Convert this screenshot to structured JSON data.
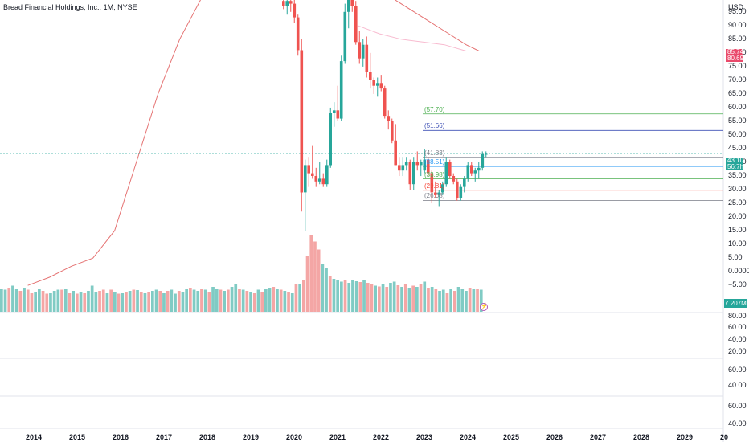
{
  "header": {
    "title": "Bread Financial Holdings, Inc., 1M, NYSE",
    "currency": "USD"
  },
  "price_axis": [
    "95.00",
    "90.00",
    "85.00",
    "80.00",
    "75.00",
    "70.00",
    "65.00",
    "60.00",
    "55.00",
    "50.00",
    "45.00",
    "40.00",
    "35.00",
    "30.00",
    "25.00",
    "20.00",
    "15.00",
    "10.00",
    "5.00",
    "0.0000",
    "−5.00"
  ],
  "pane_axes": {
    "pane1": [
      "80.00",
      "60.00",
      "40.00",
      "20.00"
    ],
    "pane2": [
      "60.00",
      "40.00"
    ],
    "pane3": [
      "60.00",
      "40.00"
    ]
  },
  "time_axis": [
    "2014",
    "2015",
    "2016",
    "2017",
    "2018",
    "2019",
    "2020",
    "2021",
    "2022",
    "2023",
    "2024",
    "2025",
    "2026",
    "2027",
    "2028",
    "2029",
    "20"
  ],
  "price_tags": {
    "current_price": "43.10",
    "current_sub": "56:7h",
    "ma_upper": "85.74",
    "ma_lower": "80.69",
    "volume": "7.207M"
  },
  "colors": {
    "up": "#26a69a",
    "down": "#ef5350",
    "up_volume": "#80cbc4",
    "down_volume": "#f4a6a5",
    "ma_line": "#e57373"
  },
  "fib_levels": [
    {
      "label": "(57.70)",
      "value": 57.7,
      "color": "#4caf50"
    },
    {
      "label": "(51.66)",
      "value": 51.66,
      "color": "#3f51b5"
    },
    {
      "label": "(41.83)",
      "value": 41.83,
      "color": "#787b86"
    },
    {
      "label": "(38.51)",
      "value": 38.51,
      "color": "#2196f3"
    },
    {
      "label": "(33.98)",
      "value": 33.98,
      "color": "#4caf50"
    },
    {
      "label": "(29.81)",
      "value": 29.81,
      "color": "#f44336"
    },
    {
      "label": "(26.08)",
      "value": 26.08,
      "color": "#787b86"
    }
  ],
  "chart_data": {
    "type": "candlestick",
    "interval": "1M",
    "y_axis_range": [
      -7,
      97
    ],
    "visible_candles_start": "2019-10",
    "candles": [
      {
        "x": "2019-10",
        "o": 99,
        "h": 103,
        "l": 96,
        "c": 97
      },
      {
        "x": "2019-11",
        "o": 97,
        "h": 100,
        "l": 94,
        "c": 99
      },
      {
        "x": "2019-12",
        "o": 99,
        "h": 102,
        "l": 95,
        "c": 98
      },
      {
        "x": "2020-01",
        "o": 98,
        "h": 100,
        "l": 91,
        "c": 93
      },
      {
        "x": "2020-02",
        "o": 93,
        "h": 94,
        "l": 79,
        "c": 81
      },
      {
        "x": "2020-03",
        "o": 81,
        "h": 85,
        "l": 22,
        "c": 29
      },
      {
        "x": "2020-04",
        "o": 29,
        "h": 41,
        "l": 15,
        "c": 39
      },
      {
        "x": "2020-05",
        "o": 39,
        "h": 42,
        "l": 31,
        "c": 36
      },
      {
        "x": "2020-06",
        "o": 36,
        "h": 46,
        "l": 34,
        "c": 35
      },
      {
        "x": "2020-07",
        "o": 35,
        "h": 38,
        "l": 31,
        "c": 33
      },
      {
        "x": "2020-08",
        "o": 33,
        "h": 40,
        "l": 32,
        "c": 34
      },
      {
        "x": "2020-09",
        "o": 34,
        "h": 36,
        "l": 31,
        "c": 32
      },
      {
        "x": "2020-10",
        "o": 32,
        "h": 41,
        "l": 31,
        "c": 39
      },
      {
        "x": "2020-11",
        "o": 39,
        "h": 60,
        "l": 38,
        "c": 58
      },
      {
        "x": "2020-12",
        "o": 58,
        "h": 62,
        "l": 53,
        "c": 59
      },
      {
        "x": "2021-01",
        "o": 59,
        "h": 68,
        "l": 55,
        "c": 56
      },
      {
        "x": "2021-02",
        "o": 56,
        "h": 79,
        "l": 55,
        "c": 77
      },
      {
        "x": "2021-03",
        "o": 77,
        "h": 98,
        "l": 76,
        "c": 95
      },
      {
        "x": "2021-04",
        "o": 95,
        "h": 108,
        "l": 89,
        "c": 102
      },
      {
        "x": "2021-05",
        "o": 102,
        "h": 107,
        "l": 95,
        "c": 97
      },
      {
        "x": "2021-06",
        "o": 97,
        "h": 99,
        "l": 83,
        "c": 84
      },
      {
        "x": "2021-07",
        "o": 84,
        "h": 88,
        "l": 76,
        "c": 78
      },
      {
        "x": "2021-08",
        "o": 78,
        "h": 85,
        "l": 75,
        "c": 83
      },
      {
        "x": "2021-09",
        "o": 83,
        "h": 86,
        "l": 71,
        "c": 73
      },
      {
        "x": "2021-10",
        "o": 73,
        "h": 80,
        "l": 67,
        "c": 70
      },
      {
        "x": "2021-11",
        "o": 70,
        "h": 71,
        "l": 65,
        "c": 68
      },
      {
        "x": "2021-12",
        "o": 68,
        "h": 71,
        "l": 64,
        "c": 69
      },
      {
        "x": "2022-01",
        "o": 69,
        "h": 72,
        "l": 66,
        "c": 67
      },
      {
        "x": "2022-02",
        "o": 67,
        "h": 68,
        "l": 56,
        "c": 57
      },
      {
        "x": "2022-03",
        "o": 57,
        "h": 59,
        "l": 52,
        "c": 55
      },
      {
        "x": "2022-04",
        "o": 55,
        "h": 56,
        "l": 47,
        "c": 48
      },
      {
        "x": "2022-05",
        "o": 48,
        "h": 54,
        "l": 39,
        "c": 39
      },
      {
        "x": "2022-06",
        "o": 39,
        "h": 42,
        "l": 35,
        "c": 37
      },
      {
        "x": "2022-07",
        "o": 37,
        "h": 42,
        "l": 35,
        "c": 39
      },
      {
        "x": "2022-08",
        "o": 39,
        "h": 42,
        "l": 37,
        "c": 40
      },
      {
        "x": "2022-09",
        "o": 40,
        "h": 41,
        "l": 30,
        "c": 32
      },
      {
        "x": "2022-10",
        "o": 32,
        "h": 42,
        "l": 30,
        "c": 40
      },
      {
        "x": "2022-11",
        "o": 40,
        "h": 44,
        "l": 37,
        "c": 39
      },
      {
        "x": "2022-12",
        "o": 39,
        "h": 41,
        "l": 35,
        "c": 40
      },
      {
        "x": "2023-01",
        "o": 37,
        "h": 45,
        "l": 36,
        "c": 41
      },
      {
        "x": "2023-02",
        "o": 41,
        "h": 42,
        "l": 35,
        "c": 36
      },
      {
        "x": "2023-03",
        "o": 36,
        "h": 37,
        "l": 25,
        "c": 29
      },
      {
        "x": "2023-04",
        "o": 29,
        "h": 33,
        "l": 27,
        "c": 28
      },
      {
        "x": "2023-05",
        "o": 28,
        "h": 30,
        "l": 24,
        "c": 29
      },
      {
        "x": "2023-06",
        "o": 29,
        "h": 33,
        "l": 28,
        "c": 32
      },
      {
        "x": "2023-07",
        "o": 32,
        "h": 42,
        "l": 31,
        "c": 40
      },
      {
        "x": "2023-08",
        "o": 40,
        "h": 41,
        "l": 34,
        "c": 35
      },
      {
        "x": "2023-09",
        "o": 35,
        "h": 36,
        "l": 32,
        "c": 33
      },
      {
        "x": "2023-10",
        "o": 33,
        "h": 34,
        "l": 26,
        "c": 27
      },
      {
        "x": "2023-11",
        "o": 27,
        "h": 32,
        "l": 26,
        "c": 31
      },
      {
        "x": "2023-12",
        "o": 31,
        "h": 35,
        "l": 29,
        "c": 34
      },
      {
        "x": "2024-01",
        "o": 34,
        "h": 40,
        "l": 33,
        "c": 39
      },
      {
        "x": "2024-02",
        "o": 39,
        "h": 40,
        "l": 35,
        "c": 36
      },
      {
        "x": "2024-03",
        "o": 36,
        "h": 38,
        "l": 33,
        "c": 37
      },
      {
        "x": "2024-04",
        "o": 37,
        "h": 40,
        "l": 34,
        "c": 38
      },
      {
        "x": "2024-05",
        "o": 38,
        "h": 44,
        "l": 37,
        "c": 43
      },
      {
        "x": "2024-06",
        "o": 43,
        "h": 44,
        "l": 42,
        "c": 43.1
      }
    ],
    "volume": [
      58,
      55,
      60,
      65,
      57,
      52,
      60,
      55,
      47,
      50,
      56,
      52,
      45,
      48,
      52,
      55,
      55,
      57,
      48,
      52,
      45,
      50,
      48,
      52,
      65,
      50,
      52,
      55,
      48,
      55,
      50,
      45,
      48,
      50,
      52,
      55,
      54,
      50,
      48,
      50,
      52,
      55,
      52,
      48,
      52,
      55,
      45,
      52,
      50,
      58,
      60,
      55,
      52,
      57,
      55,
      50,
      62,
      57,
      55,
      52,
      55,
      62,
      70,
      58,
      55,
      52,
      50,
      48,
      55,
      50,
      56,
      60,
      62,
      58,
      55,
      52,
      50,
      48,
      70,
      68,
      78,
      140,
      190,
      175,
      155,
      120,
      110,
      90,
      82,
      78,
      75,
      80,
      72,
      78,
      76,
      74,
      78,
      72,
      68,
      65,
      63,
      70,
      62,
      72,
      75,
      66,
      62,
      70,
      60,
      65,
      62,
      70,
      75,
      60,
      62,
      58,
      52,
      55,
      48,
      58,
      52,
      62,
      58,
      52,
      60,
      56,
      57,
      55
    ],
    "volume_up": [
      1,
      1,
      0,
      1,
      1,
      0,
      1,
      0,
      0,
      1,
      1,
      0,
      0,
      1,
      1,
      1,
      0,
      1,
      0,
      1,
      0,
      1,
      0,
      1,
      1,
      1,
      0,
      0,
      1,
      0,
      1,
      0,
      1,
      0,
      1,
      0,
      1,
      0,
      1,
      0,
      1,
      1,
      0,
      1,
      0,
      1,
      1,
      0,
      1,
      1,
      0,
      1,
      1,
      0,
      1,
      0,
      1,
      1,
      0,
      1,
      0,
      1,
      1,
      0,
      1,
      0,
      1,
      0,
      1,
      0,
      1,
      1,
      0,
      1,
      0,
      1,
      0,
      1,
      0,
      1,
      0,
      0,
      0,
      0,
      0,
      1,
      1,
      0,
      1,
      1,
      1,
      0,
      1,
      1,
      1,
      0,
      1,
      0,
      0,
      1,
      0,
      1,
      0,
      1,
      1,
      0,
      1,
      0,
      1,
      0,
      1,
      0,
      1,
      0,
      1,
      0,
      1,
      1,
      0,
      1,
      0,
      1,
      1,
      1,
      0,
      1,
      0,
      1
    ],
    "moving_average_1": [
      [
        2013.9,
        -5
      ],
      [
        2014.4,
        -2
      ],
      [
        2014.9,
        2
      ],
      [
        2015.4,
        5
      ],
      [
        2015.9,
        15
      ],
      [
        2016.4,
        40
      ],
      [
        2016.9,
        65
      ],
      [
        2017.4,
        85
      ],
      [
        2017.9,
        100
      ]
    ],
    "moving_average_2": [
      [
        2021.5,
        90
      ],
      [
        2022.0,
        87
      ],
      [
        2022.5,
        85
      ],
      [
        2023.0,
        84
      ],
      [
        2023.5,
        83
      ],
      [
        2024.0,
        80.69
      ]
    ],
    "moving_average_3": [
      [
        2021.9,
        105
      ],
      [
        2022.4,
        99
      ],
      [
        2023.0,
        93
      ],
      [
        2023.6,
        87
      ],
      [
        2024.0,
        83
      ],
      [
        2024.3,
        80.69
      ]
    ]
  }
}
